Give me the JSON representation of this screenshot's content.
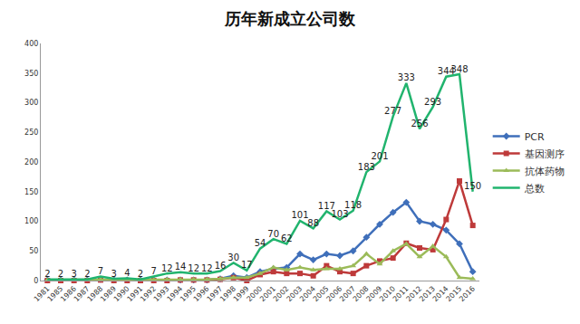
{
  "chart_data": {
    "type": "line",
    "title": "历年新成立公司数",
    "categories": [
      "1981",
      "1985",
      "1986",
      "1987",
      "1988",
      "1989",
      "1990",
      "1991",
      "1992",
      "1993",
      "1994",
      "1995",
      "1996",
      "1997",
      "1998",
      "1999",
      "2000",
      "2001",
      "2002",
      "2003",
      "2004",
      "2005",
      "2006",
      "2007",
      "2008",
      "2009",
      "2010",
      "2011",
      "2012",
      "2013",
      "2014",
      "2015",
      "2016"
    ],
    "series": [
      {
        "name": "PCR",
        "color": "#3f6fba",
        "marker": "diamond",
        "values": [
          1,
          1,
          1,
          1,
          2,
          1,
          1,
          1,
          1,
          1,
          1,
          1,
          1,
          3,
          8,
          5,
          15,
          20,
          22,
          45,
          35,
          45,
          42,
          50,
          73,
          95,
          115,
          132,
          100,
          95,
          85,
          62,
          15
        ]
      },
      {
        "name": "基因测序",
        "color": "#be3a3a",
        "marker": "square",
        "values": [
          0,
          0,
          0,
          0,
          1,
          0,
          0,
          0,
          0,
          0,
          1,
          1,
          1,
          2,
          5,
          0,
          10,
          15,
          12,
          12,
          8,
          25,
          15,
          12,
          25,
          33,
          38,
          63,
          55,
          52,
          103,
          168,
          93
        ]
      },
      {
        "name": "抗体药物",
        "color": "#9bbb59",
        "marker": "triangle-up",
        "values": [
          1,
          1,
          1,
          1,
          2,
          1,
          1,
          1,
          1,
          2,
          2,
          2,
          2,
          3,
          5,
          5,
          12,
          22,
          18,
          22,
          18,
          20,
          20,
          25,
          45,
          28,
          50,
          62,
          40,
          58,
          40,
          5,
          3
        ]
      },
      {
        "name": "总数",
        "color": "#21b46e",
        "marker": "none",
        "data_labels": true,
        "values": [
          2,
          2,
          3,
          2,
          7,
          3,
          4,
          2,
          7,
          12,
          14,
          12,
          12,
          16,
          30,
          17,
          54,
          70,
          62,
          101,
          88,
          117,
          103,
          118,
          183,
          201,
          277,
          333,
          256,
          293,
          344,
          348,
          150
        ]
      }
    ],
    "ylim": [
      0,
      400
    ],
    "yticks": [
      0,
      50,
      100,
      150,
      200,
      250,
      300,
      350,
      400
    ],
    "grid": false,
    "legend": "right"
  }
}
